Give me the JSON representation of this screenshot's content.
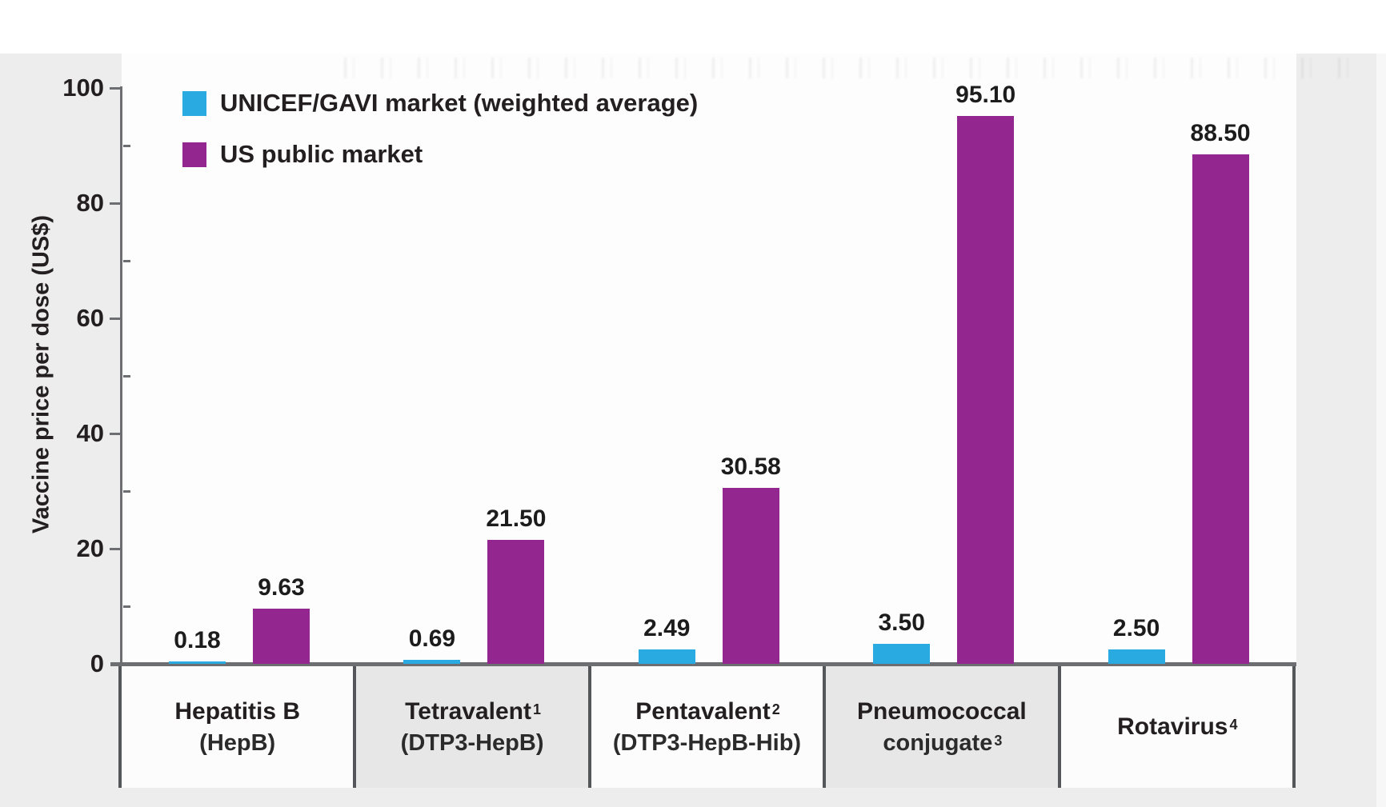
{
  "page": {
    "background": "#ededed",
    "plot_background": "#fdfdfd"
  },
  "colors": {
    "unicef_gavi_blue": "#29abe2",
    "us_public_purple": "#93278f",
    "axis_gray": "#6d6e71",
    "divider_gray": "#55565a",
    "text_dark": "#231f20",
    "category_box_alt_gray": "#e7e7e7",
    "category_box_white": "#fcfcfc"
  },
  "chart_data": {
    "type": "bar",
    "title": "",
    "xlabel": "",
    "ylabel": "Vaccine price per dose (US$)",
    "ylim": [
      0,
      100
    ],
    "yticks_major": [
      0,
      20,
      40,
      60,
      80,
      100
    ],
    "yticks_minor": [
      10,
      30,
      50,
      70,
      90
    ],
    "grid": false,
    "legend_position": "top-left-inside",
    "categories": [
      "Hepatitis B (HepB)",
      "Tetravalent¹ (DTP3-HepB)",
      "Pentavalent² (DTP3-HepB-Hib)",
      "Pneumococcal conjugate³",
      "Rotavirus⁴"
    ],
    "category_labels": [
      {
        "line1": "Hepatitis B",
        "line1_sup": "",
        "line2": "(HepB)",
        "line2_sup": ""
      },
      {
        "line1": "Tetravalent",
        "line1_sup": "1",
        "line2": "(DTP3-HepB)",
        "line2_sup": ""
      },
      {
        "line1": "Pentavalent",
        "line1_sup": "2",
        "line2": "(DTP3-HepB-Hib)",
        "line2_sup": ""
      },
      {
        "line1": "Pneumococcal",
        "line1_sup": "",
        "line2": "conjugate",
        "line2_sup": "3"
      },
      {
        "line1": "Rotavirus",
        "line1_sup": "4",
        "line2": "",
        "line2_sup": ""
      }
    ],
    "series": [
      {
        "name": "UNICEF/GAVI market (weighted average)",
        "color": "#29abe2",
        "values": [
          0.18,
          0.69,
          2.49,
          3.5,
          2.5
        ],
        "value_labels": [
          "0.18",
          "0.69",
          "2.49",
          "3.50",
          "2.50"
        ]
      },
      {
        "name": "US public market",
        "color": "#93278f",
        "values": [
          9.63,
          21.5,
          30.58,
          95.1,
          88.5
        ],
        "value_labels": [
          "9.63",
          "21.50",
          "30.58",
          "95.10",
          "88.50"
        ]
      }
    ]
  }
}
